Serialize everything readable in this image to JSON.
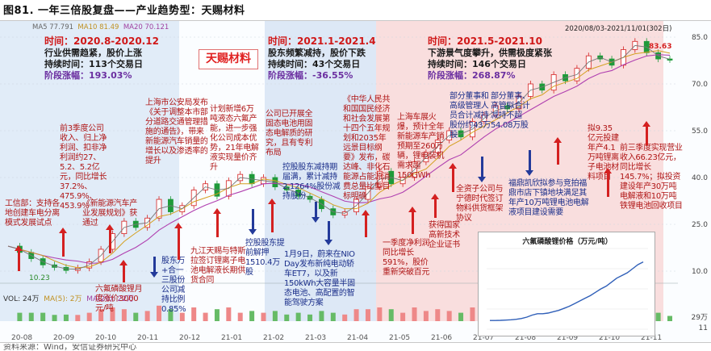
{
  "figure_title": "图81. 一年三倍股复盘——产业趋势型：天赐材料",
  "source_note": "资料来源：Wind，安信证券研究中心",
  "stock_name": "天赐材料",
  "header": {
    "ma_legend": [
      {
        "label": "MA5",
        "value": "77.791",
        "color": "#777777"
      },
      {
        "label": "MA10",
        "value": "81.49",
        "color": "#d4a020"
      },
      {
        "label": "MA20",
        "value": "70.121",
        "color": "#b040b0"
      }
    ],
    "date_range": "2020/08/03-2021/11/01(302日)",
    "color_legend": "#d0d0d0"
  },
  "volume_legend": {
    "vol": "VOL: 24万",
    "ma5": "MA(5): 2万",
    "ma20": "MA(20): 22万"
  },
  "price_labels": {
    "low": "10.23",
    "high": "83.63"
  },
  "y_axis": [
    "85.0",
    "70.0",
    "55.0",
    "40.0",
    "25.0",
    "10.0",
    "29万",
    "11"
  ],
  "x_axis": [
    "20-08",
    "20-09",
    "20-10",
    "20-11",
    "20-12",
    "21-01",
    "21-02",
    "21-03",
    "21-04",
    "21-05",
    "21-06",
    "21-07",
    "21-08",
    "21-09",
    "21-10",
    "21-11"
  ],
  "phases": [
    {
      "time": "时间：2020.8-2020.12",
      "nature": "行业供需趋紧，股价上涨",
      "duration": "持续时间：113个交易日",
      "gain": "阶段涨幅：193.03%"
    },
    {
      "time": "时间：2021.1-2021.4",
      "nature": "股东频繁减持，股价下跌",
      "duration": "持续时间：43个交易日",
      "gain": "阶段涨幅：-36.55%"
    },
    {
      "time": "时间：2021.5-2021.10",
      "nature": "下游景气度攀升，供需极度紧张",
      "duration": "持续时间：146个交易日",
      "gain": "阶段涨幅：268.87%"
    }
  ],
  "annotations": {
    "a1": "工信部：支持各地创建车电分离模式发展试点",
    "a2": "前3季度公司收入、归上净利润、扣非净利润约27、5.2、5.2亿元，同比增长37.2%、475.9%、453.9%",
    "a3": "《新能源汽车产业发展规划》获通过",
    "a4": "六氟磷酸锂月度涨价3000元/吨",
    "a5": "股东万+合一三股份公司减持比例0.85%",
    "a6": "上海市公安局发布《关于调整本市部分道路交通管理措施的通告》，带来新能源汽车销量的增长以及渗透率的提升",
    "a7": "九江天赐与特斯拉签订锂离子电池电解液长期供货合同",
    "a8": "计划新增6万吨液态六氟产能，进一步强化公司成本优势，21年电解液实现量价齐升",
    "a9": "公司已开展全固态电池用固态电解质的研究，且有专利布局",
    "a10": "控股股东提前解押1510.4万股",
    "a11": "控股股东减持期届满，累计减持2.1264%股份减持股份",
    "a12": "1月9日，蔚来在NIO Day发布新纯电动轿车ET7，以及新150kWh大容量半固态电池、高配置的智能驾驶方案",
    "a13": "《中华人民共和国国民经济和社会发展第十四个五年规划和2035年远景目标纲要》发布，碳达峰、非化石能源占能源消费总量比重目标明确",
    "a14": "一季度净利润同比增长591%，股价重新突破百元",
    "a15": "上海车展火爆，预计全年新能源车产销预期至260万辆，锂电装机需求超150GWh",
    "a16": "获得国家高新技术企业证书",
    "a17": "全资子公司与宁德时代签订物料供货框架协议",
    "a18": "部分董事和高级管理人员合计减持股份约43万股",
    "a19": "部分董事、高管拟合计减持不超54.08万股",
    "a20": "福鼎凯欣拟参与竞拍福鼎市店下镇地块满足其年产10万吨锂电池电解液项目建设需要",
    "a21": "拟9.35亿元投建年产4.1万吨锂离子电池材料项目",
    "a22": "前三季度实现营业收入66.23亿元，同比增长145.7%；拟投资建设年产30万吨电解液和10万吨铁锂电池回收项目"
  },
  "inset": {
    "title": "六氟磷酸锂价格（万元/吨）"
  },
  "colors": {
    "up": "#d42020",
    "down": "#233a9a",
    "ma5": "#777777",
    "ma10": "#d4a020",
    "ma20": "#b040b0",
    "head": "#d01818",
    "gain": "#6b2fa0"
  },
  "chart_data": [
    {
      "type": "line",
      "title": "",
      "series": [
        {
          "name": "天赐材料",
          "values": [
            18,
            16,
            14,
            12,
            11.2,
            10.23,
            11,
            13,
            17,
            22,
            26,
            24,
            27,
            33,
            29,
            31,
            36,
            38,
            34,
            39,
            41,
            38,
            40,
            37,
            36,
            34,
            33,
            30,
            28,
            29,
            33,
            37,
            42,
            38,
            40,
            45,
            48,
            52,
            55,
            53,
            58,
            60,
            63,
            62,
            66,
            70,
            68,
            73,
            71,
            75,
            79,
            78,
            76,
            81,
            83.63,
            80,
            78,
            77.79
          ]
        }
      ],
      "ylim": [
        10,
        85
      ]
    },
    {
      "type": "line",
      "title": "六氟磷酸锂价格（万元/吨）",
      "series": [
        {
          "name": "",
          "values": [
            6.5,
            6.5,
            6.6,
            6.8,
            7,
            7.4,
            8,
            9,
            10.5,
            11.5,
            11.5,
            12,
            13,
            14,
            15.5,
            17,
            19,
            21,
            23,
            25,
            27.5,
            30,
            32,
            35,
            38,
            40,
            42,
            45,
            48,
            50
          ]
        }
      ],
      "ylim": [
        0,
        60
      ]
    }
  ]
}
